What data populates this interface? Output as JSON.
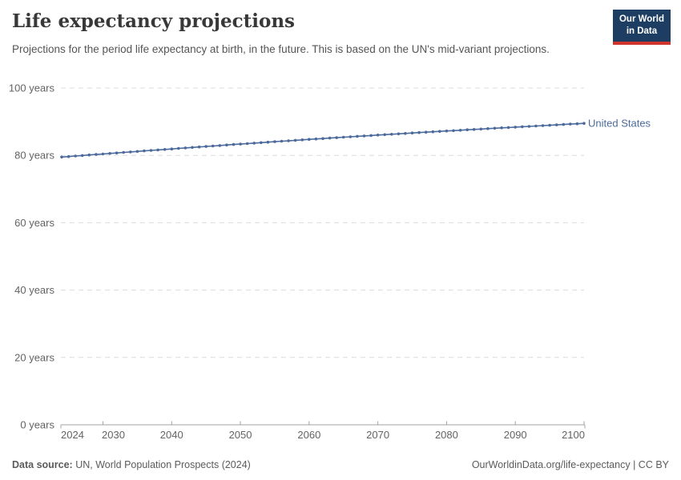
{
  "header": {
    "title": "Life expectancy projections",
    "subtitle": "Projections for the period life expectancy at birth, in the future. This is based on the UN's mid-variant projections.",
    "logo": {
      "line1": "Our World",
      "line2": "in Data",
      "bg_color": "#1d3d63",
      "bar_color": "#d0342c"
    }
  },
  "chart_data": {
    "type": "line",
    "title": "Life expectancy projections",
    "xlabel": "",
    "ylabel": "",
    "x_range": [
      2024,
      2100
    ],
    "ylim": [
      0,
      100
    ],
    "grid": "horizontal-dashed",
    "legend_position": "end-of-line-label",
    "y_ticks": [
      {
        "value": 0,
        "label": "0 years"
      },
      {
        "value": 20,
        "label": "20 years"
      },
      {
        "value": 40,
        "label": "40 years"
      },
      {
        "value": 60,
        "label": "60 years"
      },
      {
        "value": 80,
        "label": "80 years"
      },
      {
        "value": 100,
        "label": "100 years"
      }
    ],
    "x_ticks": [
      {
        "value": 2024,
        "label": "2024"
      },
      {
        "value": 2030,
        "label": "2030"
      },
      {
        "value": 2040,
        "label": "2040"
      },
      {
        "value": 2050,
        "label": "2050"
      },
      {
        "value": 2060,
        "label": "2060"
      },
      {
        "value": 2070,
        "label": "2070"
      },
      {
        "value": 2080,
        "label": "2080"
      },
      {
        "value": 2090,
        "label": "2090"
      },
      {
        "value": 2100,
        "label": "2100"
      }
    ],
    "series": [
      {
        "name": "United States",
        "color": "#4C6A9C",
        "x": [
          2024,
          2025,
          2026,
          2027,
          2028,
          2029,
          2030,
          2031,
          2032,
          2033,
          2034,
          2035,
          2036,
          2037,
          2038,
          2039,
          2040,
          2041,
          2042,
          2043,
          2044,
          2045,
          2046,
          2047,
          2048,
          2049,
          2050,
          2051,
          2052,
          2053,
          2054,
          2055,
          2056,
          2057,
          2058,
          2059,
          2060,
          2061,
          2062,
          2063,
          2064,
          2065,
          2066,
          2067,
          2068,
          2069,
          2070,
          2071,
          2072,
          2073,
          2074,
          2075,
          2076,
          2077,
          2078,
          2079,
          2080,
          2081,
          2082,
          2083,
          2084,
          2085,
          2086,
          2087,
          2088,
          2089,
          2090,
          2091,
          2092,
          2093,
          2094,
          2095,
          2096,
          2097,
          2098,
          2099,
          2100
        ],
        "values": [
          79.5,
          79.65,
          79.8,
          79.96,
          80.11,
          80.26,
          80.41,
          80.56,
          80.71,
          80.87,
          81.02,
          81.17,
          81.32,
          81.47,
          81.62,
          81.76,
          81.91,
          82.06,
          82.21,
          82.35,
          82.5,
          82.64,
          82.79,
          82.93,
          83.08,
          83.22,
          83.36,
          83.5,
          83.64,
          83.78,
          83.92,
          84.06,
          84.2,
          84.33,
          84.47,
          84.6,
          84.74,
          84.87,
          85.0,
          85.13,
          85.26,
          85.39,
          85.52,
          85.65,
          85.77,
          85.9,
          86.03,
          86.15,
          86.27,
          86.4,
          86.52,
          86.64,
          86.76,
          86.88,
          87.0,
          87.12,
          87.24,
          87.35,
          87.47,
          87.59,
          87.7,
          87.82,
          87.93,
          88.05,
          88.16,
          88.27,
          88.39,
          88.5,
          88.61,
          88.72,
          88.83,
          88.94,
          89.06,
          89.17,
          89.28,
          89.39,
          89.5
        ]
      }
    ]
  },
  "footer": {
    "source_label": "Data source:",
    "source_value": " UN, World Population Prospects (2024)",
    "url": "OurWorldinData.org/life-expectancy",
    "separator": " | ",
    "license": "CC BY"
  }
}
